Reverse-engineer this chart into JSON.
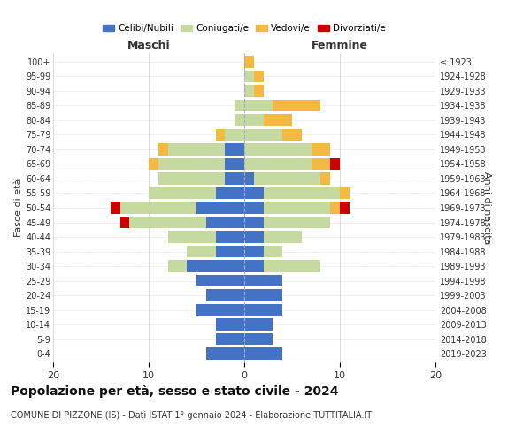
{
  "age_groups": [
    "0-4",
    "5-9",
    "10-14",
    "15-19",
    "20-24",
    "25-29",
    "30-34",
    "35-39",
    "40-44",
    "45-49",
    "50-54",
    "55-59",
    "60-64",
    "65-69",
    "70-74",
    "75-79",
    "80-84",
    "85-89",
    "90-94",
    "95-99",
    "100+"
  ],
  "birth_years": [
    "2019-2023",
    "2014-2018",
    "2009-2013",
    "2004-2008",
    "1999-2003",
    "1994-1998",
    "1989-1993",
    "1984-1988",
    "1979-1983",
    "1974-1978",
    "1969-1973",
    "1964-1968",
    "1959-1963",
    "1954-1958",
    "1949-1953",
    "1944-1948",
    "1939-1943",
    "1934-1938",
    "1929-1933",
    "1924-1928",
    "≤ 1923"
  ],
  "males": {
    "celibi": [
      4,
      3,
      3,
      5,
      4,
      5,
      6,
      3,
      3,
      4,
      5,
      3,
      2,
      2,
      2,
      0,
      0,
      0,
      0,
      0,
      0
    ],
    "coniugati": [
      0,
      0,
      0,
      0,
      0,
      0,
      2,
      3,
      5,
      8,
      8,
      7,
      7,
      7,
      6,
      2,
      1,
      1,
      0,
      0,
      0
    ],
    "vedovi": [
      0,
      0,
      0,
      0,
      0,
      0,
      0,
      0,
      0,
      0,
      0,
      0,
      0,
      1,
      1,
      1,
      0,
      0,
      0,
      0,
      0
    ],
    "divorziati": [
      0,
      0,
      0,
      0,
      0,
      0,
      0,
      0,
      0,
      1,
      1,
      0,
      0,
      0,
      0,
      0,
      0,
      0,
      0,
      0,
      0
    ]
  },
  "females": {
    "nubili": [
      4,
      3,
      3,
      4,
      4,
      4,
      2,
      2,
      2,
      2,
      2,
      2,
      1,
      0,
      0,
      0,
      0,
      0,
      0,
      0,
      0
    ],
    "coniugate": [
      0,
      0,
      0,
      0,
      0,
      0,
      6,
      2,
      4,
      7,
      7,
      8,
      7,
      7,
      7,
      4,
      2,
      3,
      1,
      1,
      0
    ],
    "vedove": [
      0,
      0,
      0,
      0,
      0,
      0,
      0,
      0,
      0,
      0,
      1,
      1,
      1,
      2,
      2,
      2,
      3,
      5,
      1,
      1,
      1
    ],
    "divorziate": [
      0,
      0,
      0,
      0,
      0,
      0,
      0,
      0,
      0,
      0,
      1,
      0,
      0,
      1,
      0,
      0,
      0,
      0,
      0,
      0,
      0
    ]
  },
  "colors": {
    "celibi": "#4472c4",
    "coniugati": "#c5d9a0",
    "vedovi": "#f5b942",
    "divorziati": "#cc0000"
  },
  "title": "Popolazione per età, sesso e stato civile - 2024",
  "subtitle": "COMUNE DI PIZZONE (IS) - Dati ISTAT 1° gennaio 2024 - Elaborazione TUTTITALIA.IT",
  "xlabel_left": "Maschi",
  "xlabel_right": "Femmine",
  "ylabel_left": "Fasce di età",
  "ylabel_right": "Anni di nascita",
  "xlim": 20,
  "bg_color": "#ffffff",
  "grid_color": "#cccccc"
}
